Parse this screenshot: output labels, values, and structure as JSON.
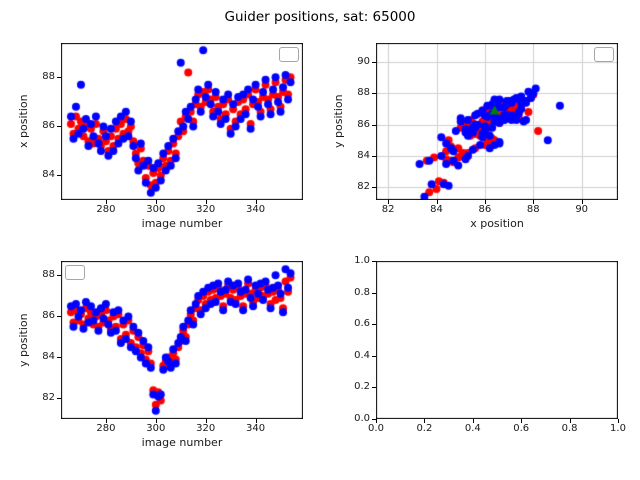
{
  "colors": {
    "red": "#ff0000",
    "blue": "#0000ff",
    "green": "#008000",
    "frame": "#000000",
    "grid": "#cfcfcf"
  },
  "chart_data": {
    "type": "scatter",
    "title": "Guider positions, sat: 65000",
    "shared_series": {
      "image_number": [
        266,
        267,
        268,
        269,
        270,
        271,
        272,
        273,
        274,
        275,
        276,
        277,
        278,
        279,
        280,
        281,
        282,
        283,
        284,
        285,
        286,
        287,
        288,
        289,
        290,
        291,
        292,
        293,
        294,
        295,
        296,
        297,
        298,
        299,
        300,
        301,
        302,
        303,
        304,
        305,
        306,
        307,
        308,
        309,
        310,
        311,
        312,
        313,
        314,
        315,
        316,
        317,
        318,
        319,
        320,
        321,
        322,
        323,
        324,
        325,
        326,
        327,
        328,
        329,
        330,
        331,
        332,
        333,
        334,
        335,
        336,
        337,
        338,
        339,
        340,
        341,
        342,
        343,
        344,
        345,
        346,
        347,
        348,
        349,
        350,
        351,
        352,
        353,
        354
      ],
      "x_position_red": [
        86.1,
        85.7,
        86.4,
        85.9,
        86.2,
        85.6,
        86.0,
        85.4,
        85.9,
        85.3,
        86.1,
        85.5,
        85.2,
        85.8,
        85.4,
        85.0,
        85.6,
        85.2,
        85.9,
        85.5,
        86.1,
        85.7,
        86.3,
        85.8,
        86.0,
        85.4,
        84.9,
        84.5,
        85.1,
        84.6,
        83.9,
        84.4,
        83.6,
        84.1,
        83.7,
        84.3,
        84.0,
        84.7,
        84.4,
        85.0,
        84.6,
        85.3,
        84.9,
        85.6,
        86.2,
        85.8,
        86.4,
        88.2,
        86.6,
        86.2,
        86.9,
        87.3,
        86.8,
        87.4,
        87.0,
        87.5,
        87.1,
        86.6,
        87.2,
        86.8,
        86.3,
        86.9,
        86.5,
        87.1,
        85.9,
        86.7,
        86.2,
        87.0,
        86.5,
        87.1,
        86.7,
        87.3,
        86.1,
        86.9,
        87.5,
        87.0,
        86.6,
        87.2,
        87.7,
        87.1,
        86.7,
        87.3,
        87.8,
        87.2,
        86.8,
        87.4,
        87.9,
        87.3,
        88.0
      ],
      "x_position_blue": [
        86.4,
        85.5,
        86.8,
        85.7,
        87.7,
        85.9,
        86.3,
        85.2,
        86.1,
        85.6,
        86.4,
        85.3,
        85.0,
        86.0,
        85.6,
        84.8,
        85.9,
        85.0,
        86.2,
        85.3,
        86.4,
        85.5,
        86.6,
        85.6,
        86.2,
        85.2,
        84.7,
        84.2,
        85.3,
        84.4,
        83.7,
        84.6,
        83.3,
        84.3,
        83.5,
        84.5,
        83.8,
        84.9,
        84.2,
        85.2,
        84.4,
        85.5,
        84.7,
        85.8,
        88.6,
        86.0,
        86.6,
        86.3,
        86.8,
        86.0,
        87.1,
        87.5,
        86.6,
        89.1,
        87.2,
        87.7,
        86.9,
        86.4,
        87.4,
        86.6,
        86.1,
        87.1,
        86.3,
        87.3,
        85.7,
        86.9,
        86.0,
        87.2,
        86.3,
        87.3,
        86.5,
        87.5,
        85.9,
        87.1,
        87.7,
        86.8,
        86.4,
        87.4,
        87.9,
        86.9,
        86.5,
        87.5,
        88.0,
        87.0,
        86.6,
        87.6,
        88.1,
        87.1,
        87.8
      ],
      "y_position_red": [
        86.2,
        85.7,
        86.3,
        85.8,
        86.1,
        85.6,
        86.4,
        85.9,
        86.2,
        85.6,
        86.0,
        85.5,
        86.1,
        85.7,
        86.3,
        85.8,
        85.4,
        86.0,
        85.5,
        86.1,
        84.9,
        85.6,
        85.1,
        85.8,
        84.7,
        85.3,
        84.5,
        85.0,
        84.2,
        84.6,
        83.9,
        84.3,
        83.7,
        82.4,
        81.7,
        82.3,
        81.9,
        83.6,
        83.8,
        84.0,
        83.7,
        84.2,
        83.9,
        84.5,
        84.8,
        85.3,
        85.0,
        85.6,
        86.1,
        85.8,
        86.4,
        86.8,
        86.3,
        87.0,
        86.6,
        87.2,
        86.8,
        87.3,
        86.9,
        87.4,
        87.0,
        86.5,
        87.1,
        87.5,
        86.9,
        87.3,
        86.8,
        87.4,
        87.0,
        86.5,
        87.1,
        87.6,
        87.1,
        86.7,
        87.3,
        86.9,
        87.4,
        87.0,
        87.5,
        87.1,
        86.6,
        87.2,
        86.8,
        87.3,
        86.9,
        86.4,
        87.7,
        87.2,
        87.9
      ],
      "y_position_blue": [
        86.5,
        85.5,
        86.6,
        86.0,
        86.3,
        85.4,
        86.7,
        85.7,
        86.5,
        85.8,
        86.2,
        85.3,
        86.4,
        85.9,
        86.6,
        85.6,
        85.2,
        86.2,
        85.3,
        86.3,
        84.7,
        85.8,
        84.9,
        86.0,
        84.5,
        85.5,
        84.3,
        85.2,
        84.0,
        84.8,
        83.7,
        84.5,
        83.5,
        82.2,
        81.4,
        82.1,
        82.2,
        83.4,
        84.0,
        83.8,
        83.5,
        84.4,
        83.7,
        84.7,
        85.0,
        85.5,
        84.8,
        85.8,
        86.3,
        85.6,
        86.6,
        87.0,
        86.1,
        87.2,
        86.4,
        87.4,
        86.6,
        87.5,
        86.7,
        87.6,
        87.2,
        86.3,
        87.3,
        87.7,
        86.7,
        87.5,
        86.6,
        87.6,
        87.2,
        86.3,
        87.3,
        87.8,
        86.9,
        86.5,
        87.5,
        87.1,
        87.6,
        86.8,
        87.7,
        87.3,
        86.4,
        87.4,
        88.0,
        87.5,
        87.1,
        86.2,
        88.3,
        87.4,
        88.1
      ],
      "mean_marker": {
        "x": 86.4,
        "y": 86.9
      }
    },
    "subplots": [
      {
        "id": "subplot-x-position-vs-image-number",
        "xlabel": "image number",
        "ylabel": "x position",
        "xlim": [
          262,
          359
        ],
        "ylim": [
          83.0,
          89.4
        ],
        "xticks": [
          280,
          300,
          320,
          340
        ],
        "xtick_labels": [
          "280",
          "300",
          "320",
          "340"
        ],
        "yticks": [
          84,
          86,
          88
        ],
        "ytick_labels": [
          "84",
          "86",
          "88"
        ],
        "grid": false,
        "legend": "top-right",
        "series": [
          {
            "color": "red",
            "x": "image_number",
            "y": "x_position_red"
          },
          {
            "color": "blue",
            "x": "image_number",
            "y": "x_position_blue"
          }
        ]
      },
      {
        "id": "subplot-y-position-vs-x-position",
        "xlabel": "x position",
        "ylabel": "y position",
        "xlim": [
          81.5,
          91.5
        ],
        "ylim": [
          81.2,
          91.2
        ],
        "xticks": [
          82,
          84,
          86,
          88,
          90
        ],
        "xtick_labels": [
          "82",
          "84",
          "86",
          "88",
          "90"
        ],
        "yticks": [
          82,
          84,
          86,
          88,
          90
        ],
        "ytick_labels": [
          "82",
          "84",
          "86",
          "88",
          "90"
        ],
        "grid": true,
        "legend": "top-right",
        "series": [
          {
            "color": "red",
            "x": "x_position_red",
            "y": "y_position_red"
          },
          {
            "color": "blue",
            "x": "x_position_blue",
            "y": "y_position_blue"
          }
        ],
        "marker": {
          "key": "mean_marker",
          "color": "green"
        }
      },
      {
        "id": "subplot-y-position-vs-image-number",
        "xlabel": "image number",
        "ylabel": "y position",
        "xlim": [
          262,
          359
        ],
        "ylim": [
          81.0,
          88.7
        ],
        "xticks": [
          280,
          300,
          320,
          340
        ],
        "xtick_labels": [
          "280",
          "300",
          "320",
          "340"
        ],
        "yticks": [
          82,
          84,
          86,
          88
        ],
        "ytick_labels": [
          "82",
          "84",
          "86",
          "88"
        ],
        "grid": false,
        "legend": "top-left",
        "series": [
          {
            "color": "red",
            "x": "image_number",
            "y": "y_position_red"
          },
          {
            "color": "blue",
            "x": "image_number",
            "y": "y_position_blue"
          }
        ]
      },
      {
        "id": "subplot-empty",
        "xlabel": "",
        "ylabel": "",
        "xlim": [
          0,
          1
        ],
        "ylim": [
          0,
          1
        ],
        "xticks": [
          0.0,
          0.2,
          0.4,
          0.6,
          0.8,
          1.0
        ],
        "xtick_labels": [
          "0.0",
          "0.2",
          "0.4",
          "0.6",
          "0.8",
          "1.0"
        ],
        "yticks": [
          0.0,
          0.2,
          0.4,
          0.6,
          0.8,
          1.0
        ],
        "ytick_labels": [
          "0.0",
          "0.2",
          "0.4",
          "0.6",
          "0.8",
          "1.0"
        ],
        "grid": false,
        "legend": null,
        "series": []
      }
    ]
  }
}
